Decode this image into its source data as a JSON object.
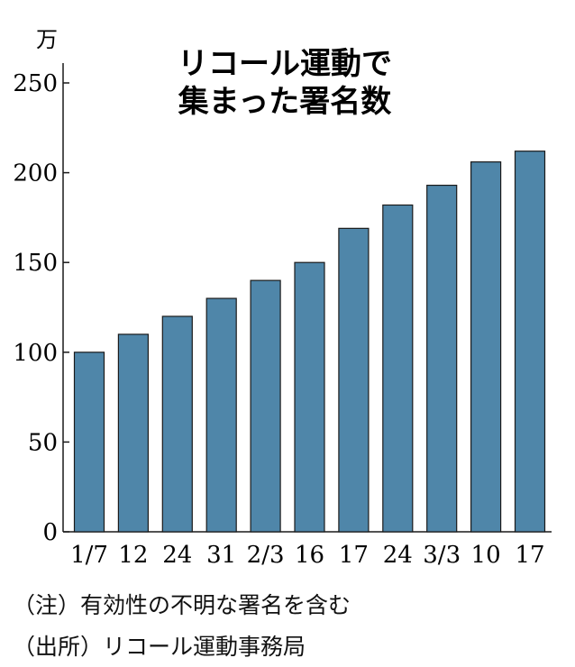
{
  "chart_data": {
    "type": "bar",
    "title": [
      "リコール運動で",
      "集まった署名数"
    ],
    "unit": "万",
    "categories": [
      "1/7",
      "12",
      "24",
      "31",
      "2/3",
      "16",
      "17",
      "24",
      "3/3",
      "10",
      "17"
    ],
    "values": [
      100,
      110,
      120,
      130,
      140,
      150,
      169,
      182,
      193,
      206,
      212
    ],
    "ylim": [
      0,
      250
    ],
    "yticks": [
      0,
      50,
      100,
      150,
      200,
      250
    ],
    "grid": false,
    "bar_color": "#4f86a9",
    "bar_stroke": "#1a1a1a"
  },
  "notes": [
    "（注）有効性の不明な署名を含む",
    "（出所）リコール運動事務局"
  ]
}
